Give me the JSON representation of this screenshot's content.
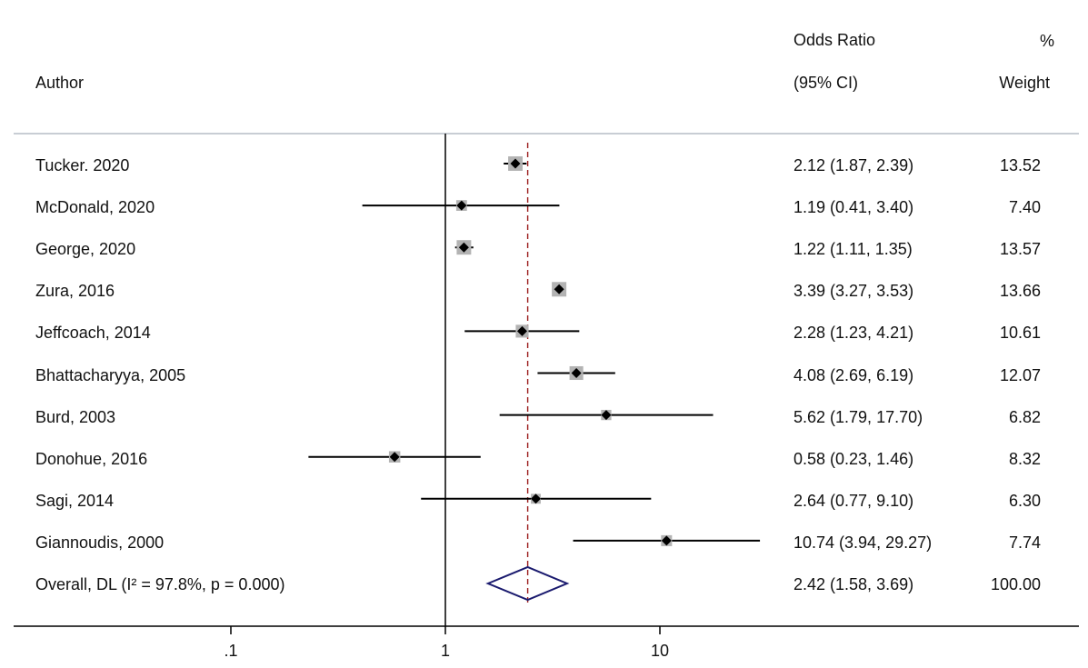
{
  "header": {
    "author_label": "Author",
    "or_label_top": "Odds Ratio",
    "or_label_bottom": "(95% CI)",
    "weight_label_top": "%",
    "weight_label_bottom": "Weight"
  },
  "colors": {
    "line": "#000000",
    "box": "#b3b3b3",
    "diamond": "#1a1a6e",
    "ref_line": "#9b1c1c",
    "divider": "#c8cdd4"
  },
  "chart_data": {
    "type": "forest",
    "scale": "log",
    "xlim": [
      0.1,
      30
    ],
    "x_ticks": [
      {
        "value": 0.1,
        "label": ".1"
      },
      {
        "value": 1,
        "label": "1"
      },
      {
        "value": 10,
        "label": "10"
      }
    ],
    "null_value": 1,
    "overall_estimate": 2.42,
    "studies": [
      {
        "author": "Tucker. 2020",
        "or": 2.12,
        "lo": 1.87,
        "hi": 2.39,
        "ci_text": "2.12 (1.87, 2.39)",
        "weight": "13.52"
      },
      {
        "author": "McDonald, 2020",
        "or": 1.19,
        "lo": 0.41,
        "hi": 3.4,
        "ci_text": "1.19 (0.41, 3.40)",
        "weight": "7.40"
      },
      {
        "author": "George, 2020",
        "or": 1.22,
        "lo": 1.11,
        "hi": 1.35,
        "ci_text": "1.22 (1.11, 1.35)",
        "weight": "13.57"
      },
      {
        "author": "Zura, 2016",
        "or": 3.39,
        "lo": 3.27,
        "hi": 3.53,
        "ci_text": "3.39 (3.27, 3.53)",
        "weight": "13.66"
      },
      {
        "author": "Jeffcoach, 2014",
        "or": 2.28,
        "lo": 1.23,
        "hi": 4.21,
        "ci_text": "2.28 (1.23, 4.21)",
        "weight": "10.61"
      },
      {
        "author": "Bhattacharyya, 2005",
        "or": 4.08,
        "lo": 2.69,
        "hi": 6.19,
        "ci_text": "4.08 (2.69, 6.19)",
        "weight": "12.07"
      },
      {
        "author": "Burd, 2003",
        "or": 5.62,
        "lo": 1.79,
        "hi": 17.7,
        "ci_text": "5.62 (1.79, 17.70)",
        "weight": "6.82"
      },
      {
        "author": "Donohue, 2016",
        "or": 0.58,
        "lo": 0.23,
        "hi": 1.46,
        "ci_text": "0.58 (0.23, 1.46)",
        "weight": "8.32"
      },
      {
        "author": "Sagi, 2014",
        "or": 2.64,
        "lo": 0.77,
        "hi": 9.1,
        "ci_text": "2.64 (0.77, 9.10)",
        "weight": "6.30"
      },
      {
        "author": "Giannoudis, 2000",
        "or": 10.74,
        "lo": 3.94,
        "hi": 29.27,
        "ci_text": "10.74 (3.94, 29.27)",
        "weight": "7.74"
      }
    ],
    "overall": {
      "label": "Overall, DL (I² = 97.8%, p = 0.000)",
      "or": 2.42,
      "lo": 1.58,
      "hi": 3.69,
      "ci_text": "2.42 (1.58, 3.69)",
      "weight": "100.00"
    }
  }
}
